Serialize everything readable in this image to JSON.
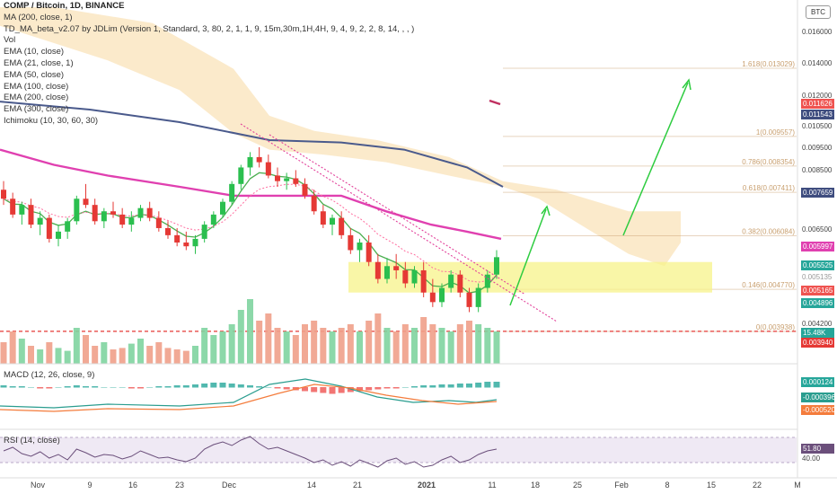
{
  "header": {
    "symbol_line": "COMP / Bitcoin, 1D, BINANCE",
    "currency_badge": "BTC",
    "indicators": [
      "MA (200, close, 1)",
      "TD_MA_beta_v2.07 by JDLim (Version 1, Standard, 3, 80, 2, 1, 1, 9, 15m,30m,1H,4H, 9, 4, 9, 2, 2, 8, 14, , , )",
      "Vol",
      "EMA (10, close)",
      "EMA (21, close, 1)",
      "EMA (50, close)",
      "EMA (100, close)",
      "EMA (200, close)",
      "EMA (300, close)",
      "Ichimoku (10, 30, 60, 30)"
    ]
  },
  "colors": {
    "up": "#26a69a",
    "down": "#ef5350",
    "ema_pink": "#e040b0",
    "ma_navy": "#4a5a8c",
    "ema_green": "#4caf50",
    "cloud": "#f8d9a0",
    "zone": "#f7f38a",
    "fib": "#c9a070",
    "arrow": "#2ecc40",
    "macd_line": "#2a9d8f",
    "signal_line": "#f47c3c",
    "rsi": "#6b4f7b"
  },
  "price_axis": {
    "ticks": [
      "0.016000",
      "0.014000",
      "0.012000",
      "0.010500",
      "0.009500",
      "0.008500",
      "0.006500",
      "0.004200"
    ],
    "labels_tagged": [
      {
        "text": "0.011626",
        "color": "#ef5350"
      },
      {
        "text": "0.011543",
        "color": "#3f4d7f"
      },
      {
        "text": "0.007659",
        "color": "#3f4d7f"
      },
      {
        "text": "0.005997",
        "color": "#e040b0"
      },
      {
        "text": "0.005525",
        "color": "#26a69a"
      },
      {
        "text": "0.005165",
        "color": "#ef5350"
      },
      {
        "text": "0.004896",
        "color": "#26a69a"
      },
      {
        "text": "15.48K",
        "color": "#26a69a"
      },
      {
        "text": "0.003940",
        "color": "#e53935"
      }
    ],
    "faded_label": "0.005135"
  },
  "fib_levels": [
    {
      "label": "1.618(0.013029)",
      "value": 0.013029
    },
    {
      "label": "1(0.009557)",
      "value": 0.009557
    },
    {
      "label": "0.786(0.008354)",
      "value": 0.008354
    },
    {
      "label": "0.618(0.007411)",
      "value": 0.007411
    },
    {
      "label": "0.382(0.006084)",
      "value": 0.006084
    },
    {
      "label": "0.146(0.004770)",
      "value": 0.00477
    },
    {
      "label": "0(0.003938)",
      "value": 0.003938
    }
  ],
  "time_axis": [
    "Nov",
    "9",
    "16",
    "23",
    "Dec",
    "14",
    "21",
    "2021",
    "11",
    "18",
    "25",
    "Feb",
    "8",
    "15",
    "22",
    "M"
  ],
  "macd": {
    "title": "MACD (12, 26, close, 9)",
    "values": [
      "0.000124",
      "-0.000396",
      "-0.000520"
    ]
  },
  "rsi": {
    "title": "RSI (14, close)",
    "value": "51.80",
    "tick": "40.00"
  },
  "chart_data": {
    "type": "candlestick",
    "title": "COMP / Bitcoin, 1D, BINANCE",
    "unit": "BTC",
    "series": [
      {
        "name": "COMP/BTC",
        "ohlc": [
          [
            0.0075,
            0.0078,
            0.007,
            0.0072
          ],
          [
            0.0072,
            0.0074,
            0.0066,
            0.0067
          ],
          [
            0.0067,
            0.0071,
            0.0064,
            0.007
          ],
          [
            0.007,
            0.0072,
            0.0063,
            0.0064
          ],
          [
            0.0064,
            0.0068,
            0.0061,
            0.0066
          ],
          [
            0.0066,
            0.0067,
            0.0059,
            0.006
          ],
          [
            0.006,
            0.0064,
            0.0058,
            0.0062
          ],
          [
            0.0062,
            0.0066,
            0.006,
            0.0065
          ],
          [
            0.0065,
            0.0073,
            0.0064,
            0.0072
          ],
          [
            0.0072,
            0.0077,
            0.0069,
            0.007
          ],
          [
            0.007,
            0.0072,
            0.0064,
            0.0065
          ],
          [
            0.0065,
            0.0069,
            0.0063,
            0.0068
          ],
          [
            0.0068,
            0.0071,
            0.0066,
            0.0067
          ],
          [
            0.0067,
            0.0069,
            0.0063,
            0.0064
          ],
          [
            0.0064,
            0.0068,
            0.0062,
            0.0066
          ],
          [
            0.0066,
            0.007,
            0.0065,
            0.0069
          ],
          [
            0.0069,
            0.0071,
            0.0065,
            0.0066
          ],
          [
            0.0066,
            0.0068,
            0.0062,
            0.0063
          ],
          [
            0.0063,
            0.0065,
            0.006,
            0.0061
          ],
          [
            0.0061,
            0.0063,
            0.0058,
            0.0059
          ],
          [
            0.0059,
            0.0062,
            0.0057,
            0.0058
          ],
          [
            0.0058,
            0.0061,
            0.0056,
            0.006
          ],
          [
            0.006,
            0.0065,
            0.0059,
            0.0064
          ],
          [
            0.0064,
            0.0068,
            0.0063,
            0.0067
          ],
          [
            0.0067,
            0.0072,
            0.0066,
            0.0071
          ],
          [
            0.0071,
            0.0078,
            0.007,
            0.0077
          ],
          [
            0.0077,
            0.0084,
            0.0075,
            0.0083
          ],
          [
            0.0083,
            0.0089,
            0.008,
            0.0087
          ],
          [
            0.0087,
            0.0091,
            0.0083,
            0.0085
          ],
          [
            0.0085,
            0.0088,
            0.0079,
            0.008
          ],
          [
            0.008,
            0.0083,
            0.0076,
            0.0078
          ],
          [
            0.0078,
            0.0081,
            0.0075,
            0.0079
          ],
          [
            0.0079,
            0.0082,
            0.0076,
            0.0077
          ],
          [
            0.0077,
            0.0079,
            0.0072,
            0.0073
          ],
          [
            0.0073,
            0.0075,
            0.0067,
            0.0068
          ],
          [
            0.0068,
            0.007,
            0.0063,
            0.0064
          ],
          [
            0.0064,
            0.0067,
            0.0061,
            0.0066
          ],
          [
            0.0066,
            0.0068,
            0.006,
            0.0061
          ],
          [
            0.0061,
            0.0063,
            0.0056,
            0.0057
          ],
          [
            0.0057,
            0.006,
            0.0054,
            0.0059
          ],
          [
            0.0059,
            0.0061,
            0.0053,
            0.0054
          ],
          [
            0.0054,
            0.0056,
            0.0049,
            0.005
          ],
          [
            0.005,
            0.0055,
            0.0049,
            0.0053
          ],
          [
            0.0053,
            0.0056,
            0.005,
            0.0052
          ],
          [
            0.0052,
            0.0054,
            0.0048,
            0.0049
          ],
          [
            0.0049,
            0.0053,
            0.0048,
            0.0052
          ],
          [
            0.0052,
            0.0054,
            0.0046,
            0.0047
          ],
          [
            0.0047,
            0.005,
            0.0044,
            0.0045
          ],
          [
            0.0045,
            0.0049,
            0.0044,
            0.0048
          ],
          [
            0.0048,
            0.0052,
            0.0047,
            0.0051
          ],
          [
            0.0051,
            0.0052,
            0.0046,
            0.0047
          ],
          [
            0.0047,
            0.0048,
            0.0043,
            0.0044
          ],
          [
            0.0044,
            0.0049,
            0.0043,
            0.0048
          ],
          [
            0.0048,
            0.0052,
            0.0047,
            0.0051
          ],
          [
            0.0051,
            0.0057,
            0.005,
            0.00552
          ]
        ]
      }
    ],
    "overlays": [
      "MA 200",
      "EMA 10",
      "EMA 21",
      "EMA 50",
      "EMA 100",
      "EMA 200",
      "EMA 300",
      "Ichimoku cloud",
      "Fibonacci extension",
      "descending trendlines",
      "projection arrows"
    ],
    "y_range": [
      0.0034,
      0.0172
    ],
    "x_range": [
      "Oct 2020",
      "Mar 2021"
    ],
    "grid": false,
    "legend": "top-left"
  }
}
